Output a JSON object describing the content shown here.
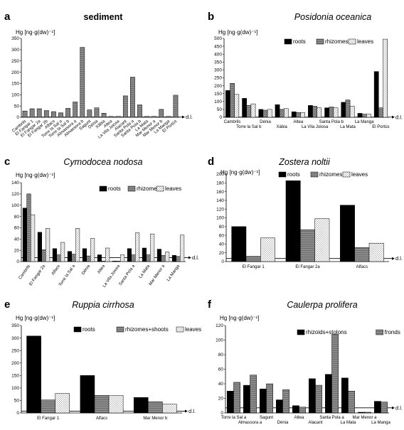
{
  "chart_data": [
    {
      "panel": "a",
      "title": "sediment",
      "title_style": "bold",
      "type": "bar",
      "ylabel": "Hg [ng·g(dw)⁻¹]",
      "ylim": [
        0,
        350
      ],
      "yticks": [
        0,
        50,
        100,
        150,
        200,
        250,
        300,
        350
      ],
      "dl_value": 1,
      "dl_label": "d.l.",
      "categories": [
        "Cambrils",
        "El Fangar 1",
        "El Fangar 2a",
        "El Fangar 2b",
        "Alfacs",
        "Torre la Sal a",
        "Torre la Sal b",
        "Almassora a",
        "Almassora b",
        "Sagunt",
        "Dénia",
        "Xàbia",
        "Altea",
        "La Vila Joiosa",
        "Alacant",
        "Santa Pola a",
        "Santa Pola b",
        "La Mata",
        "Mar Menor a",
        "Mar Menor b",
        "La Manga",
        "El Portús"
      ],
      "series": [
        {
          "name": "",
          "pattern": "gray",
          "values": [
            28,
            38,
            38,
            30,
            25,
            20,
            40,
            68,
            310,
            33,
            42,
            18,
            4,
            4,
            95,
            178,
            55,
            4,
            4,
            35,
            4,
            98
          ]
        }
      ]
    },
    {
      "panel": "b",
      "title": "Posidonia oceanica",
      "title_style": "italic",
      "type": "bar",
      "ylabel": "Hg [ng·g(dw)⁻¹]",
      "ylim": [
        0,
        500
      ],
      "yticks": [
        0,
        50,
        100,
        150,
        200,
        250,
        300,
        350,
        400,
        450,
        500
      ],
      "dl_value": 1,
      "dl_label": "d.l.",
      "categories": [
        "Cambrils",
        "Torre la Sal b",
        "Dénia",
        "Xàbia",
        "Altea",
        "La Vila Joiosa",
        "Santa Pola b",
        "La Mata",
        "La Manga",
        "El Portús"
      ],
      "series": [
        {
          "name": "roots",
          "pattern": "black",
          "values": [
            170,
            120,
            50,
            80,
            35,
            75,
            60,
            95,
            25,
            290
          ]
        },
        {
          "name": "rhizomes",
          "pattern": "gray",
          "values": [
            215,
            75,
            45,
            50,
            30,
            70,
            65,
            110,
            20,
            60
          ]
        },
        {
          "name": "leaves",
          "pattern": "dots",
          "values": [
            145,
            85,
            50,
            55,
            30,
            60,
            60,
            70,
            20,
            495
          ]
        }
      ]
    },
    {
      "panel": "c",
      "title": "Cymodocea nodosa",
      "title_style": "italic",
      "type": "bar",
      "ylabel": "Hg [ng·g(dw)⁻¹]",
      "ylim": [
        0,
        140
      ],
      "yticks": [
        0,
        20,
        40,
        60,
        80,
        100,
        120,
        140
      ],
      "dl_value": 7,
      "dl_label": "d.l.",
      "categories": [
        "Cambrils",
        "El Fangar 2a",
        "Alfacs",
        "Torre la Sal a",
        "Dénia",
        "Altea",
        "La Vila Joiosa",
        "Santa Pola a",
        "La Mata",
        "Mar Menor a",
        "La Manga"
      ],
      "series": [
        {
          "name": "roots",
          "pattern": "black",
          "values": [
            95,
            52,
            23,
            18,
            23,
            12,
            1,
            23,
            24,
            22,
            11
          ]
        },
        {
          "name": "rhizomes",
          "pattern": "gray",
          "values": [
            120,
            21,
            12,
            13,
            10,
            1,
            1,
            12,
            12,
            11,
            9
          ]
        },
        {
          "name": "leaves",
          "pattern": "dots",
          "values": [
            83,
            59,
            34,
            59,
            41,
            24,
            12,
            51,
            49,
            17,
            47
          ]
        }
      ]
    },
    {
      "panel": "d",
      "title": "Zostera noltii",
      "title_style": "italic",
      "type": "bar",
      "ylabel": "Hg [ng·g(dw)⁻¹]",
      "ylim": [
        0,
        200
      ],
      "yticks": [
        0,
        20,
        40,
        60,
        80,
        100,
        120,
        140,
        160,
        180,
        200
      ],
      "dl_value": 7,
      "dl_label": "d.l.",
      "categories": [
        "El Fangar 1",
        "El Fangar 2a",
        "Alfacs"
      ],
      "series": [
        {
          "name": "roots",
          "pattern": "black",
          "values": [
            80,
            185,
            129
          ]
        },
        {
          "name": "rhizomes",
          "pattern": "gray",
          "values": [
            12,
            73,
            32
          ]
        },
        {
          "name": "leaves",
          "pattern": "dots",
          "values": [
            54,
            98,
            42
          ]
        }
      ]
    },
    {
      "panel": "e",
      "title": "Ruppia cirrhosa",
      "title_style": "italic",
      "type": "bar",
      "ylabel": "Hg [ng·g(dw)⁻¹]",
      "ylim": [
        0,
        350
      ],
      "yticks": [
        0,
        50,
        100,
        150,
        200,
        250,
        300,
        350
      ],
      "dl_value": 7,
      "dl_label": "d.l.",
      "categories": [
        "El Fangar 1",
        "Alfacs",
        "Mar Menor b"
      ],
      "series": [
        {
          "name": "roots",
          "pattern": "black",
          "values": [
            308,
            150,
            62
          ]
        },
        {
          "name": "rhizomes+shoots",
          "pattern": "gray",
          "values": [
            52,
            70,
            45
          ]
        },
        {
          "name": "leaves",
          "pattern": "dots",
          "values": [
            78,
            70,
            35
          ]
        }
      ]
    },
    {
      "panel": "f",
      "title": "Caulerpa prolifera",
      "title_style": "italic",
      "type": "bar",
      "ylabel": "Hg [ng·g(dw)⁻¹]",
      "ylim": [
        0,
        120
      ],
      "yticks": [
        0,
        20,
        40,
        60,
        80,
        100,
        120
      ],
      "dl_value": 7,
      "dl_label": "d.l.",
      "categories": [
        "Torre la Sal a",
        "Almassora a",
        "Sagunt",
        "Dénia",
        "Altea",
        "Alacant",
        "Santa Pola a",
        "La Mata",
        "Mar Menor a",
        "La Manga"
      ],
      "series": [
        {
          "name": "rhizoids+stolons",
          "pattern": "black",
          "values": [
            30,
            38,
            33,
            18,
            10,
            47,
            53,
            48,
            1,
            16
          ]
        },
        {
          "name": "fronds",
          "pattern": "gray",
          "values": [
            42,
            52,
            40,
            32,
            8,
            38,
            108,
            30,
            1,
            15
          ]
        }
      ]
    }
  ]
}
